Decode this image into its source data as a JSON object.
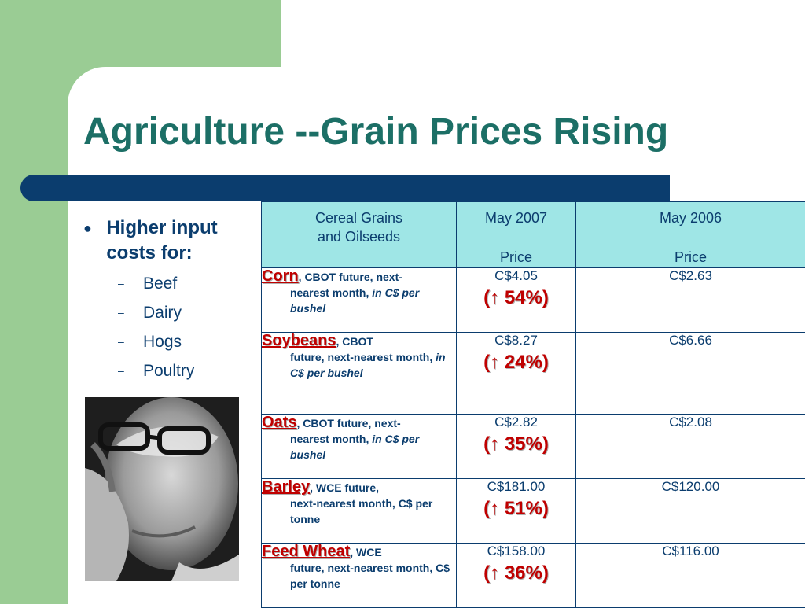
{
  "slide": {
    "title": "Agriculture --Grain Prices Rising",
    "accent_color": "#1c6f66",
    "bar_color": "#0b3d6e",
    "green_color": "#9acc94"
  },
  "bullets": {
    "main": "Higher input costs for:",
    "items": [
      "Beef",
      "Dairy",
      "Hogs",
      "Poultry"
    ]
  },
  "table": {
    "headers": {
      "col1_line1": "Cereal Grains",
      "col1_line2": "and Oilseeds",
      "col2_title": "May 2007",
      "col2_sub": "Price",
      "col3_title": "May 2006",
      "col3_sub": "Price"
    },
    "rows": [
      {
        "name": "Corn",
        "desc_a": ", CBOT future, next-",
        "desc_b": "nearest month, ",
        "unit": "in C$ per bushel",
        "price_2007": "C$4.05",
        "change": "(↑ 54%)",
        "price_2006": "C$2.63"
      },
      {
        "name": "Soybeans",
        "desc_a": ", CBOT",
        "desc_b": "future, next-nearest month, ",
        "unit": "in C$ per bushel",
        "price_2007": "C$8.27",
        "change": "(↑ 24%)",
        "price_2006": "C$6.66"
      },
      {
        "name": "Oats",
        "desc_a": ", CBOT future, next-",
        "desc_b": "nearest month, ",
        "unit": "in C$ per bushel",
        "price_2007": "C$2.82",
        "change": "(↑ 35%)",
        "price_2006": "C$2.08"
      },
      {
        "name": "Barley",
        "desc_a": ", WCE future,",
        "desc_b": "next-nearest month, C$ per tonne",
        "unit": "",
        "price_2007": "C$181.00",
        "change": "(↑ 51%)",
        "price_2006": "C$120.00"
      },
      {
        "name": "Feed Wheat",
        "desc_a": ", WCE",
        "desc_b": "future, next-nearest month, C$ per tonne",
        "unit": "",
        "price_2007": "C$158.00",
        "change": "(↑ 36%)",
        "price_2006": "C$116.00"
      }
    ]
  }
}
